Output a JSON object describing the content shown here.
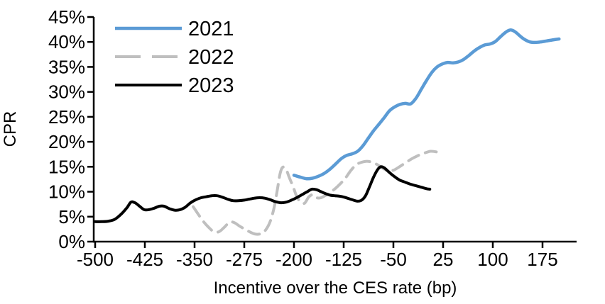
{
  "chart_data": {
    "type": "line",
    "title": "",
    "xlabel": "Incentive over the CES rate (bp)",
    "ylabel": "CPR",
    "xlim": [
      -500,
      228
    ],
    "ylim": [
      0,
      45
    ],
    "x_ticks": [
      -500,
      -425,
      -350,
      -275,
      -200,
      -125,
      -50,
      25,
      100,
      175
    ],
    "y_ticks": [
      0,
      5,
      10,
      15,
      20,
      25,
      30,
      35,
      40,
      45
    ],
    "y_tick_suffix": "%",
    "grid": false,
    "legend_position": "top-left",
    "axis_color": "#000000",
    "series": [
      {
        "name": "2021",
        "color": "#5B9BD5",
        "style": "solid",
        "points": [
          [
            -200,
            13.3
          ],
          [
            -190,
            12.9
          ],
          [
            -181,
            12.6
          ],
          [
            -172,
            12.7
          ],
          [
            -163,
            13.1
          ],
          [
            -154,
            13.7
          ],
          [
            -145,
            14.6
          ],
          [
            -136,
            15.7
          ],
          [
            -128,
            16.7
          ],
          [
            -120,
            17.3
          ],
          [
            -112,
            17.6
          ],
          [
            -104,
            18.1
          ],
          [
            -96,
            19.2
          ],
          [
            -88,
            20.7
          ],
          [
            -80,
            22.2
          ],
          [
            -72,
            23.5
          ],
          [
            -64,
            24.8
          ],
          [
            -56,
            26.2
          ],
          [
            -48,
            27.0
          ],
          [
            -40,
            27.5
          ],
          [
            -32,
            27.7
          ],
          [
            -24,
            27.6
          ],
          [
            -16,
            28.7
          ],
          [
            -8,
            30.5
          ],
          [
            0,
            32.3
          ],
          [
            8,
            33.9
          ],
          [
            16,
            35.0
          ],
          [
            24,
            35.6
          ],
          [
            32,
            35.9
          ],
          [
            40,
            35.8
          ],
          [
            48,
            36.0
          ],
          [
            56,
            36.5
          ],
          [
            64,
            37.3
          ],
          [
            72,
            38.2
          ],
          [
            80,
            38.9
          ],
          [
            88,
            39.4
          ],
          [
            96,
            39.6
          ],
          [
            104,
            40.1
          ],
          [
            112,
            41.1
          ],
          [
            120,
            42.0
          ],
          [
            127,
            42.4
          ],
          [
            134,
            42.0
          ],
          [
            141,
            41.2
          ],
          [
            148,
            40.5
          ],
          [
            156,
            40.0
          ],
          [
            164,
            39.9
          ],
          [
            172,
            40.0
          ],
          [
            181,
            40.2
          ],
          [
            190,
            40.4
          ],
          [
            200,
            40.6
          ]
        ]
      },
      {
        "name": "2022",
        "color": "#BFBFBF",
        "style": "dashed",
        "points": [
          [
            -352,
            7.0
          ],
          [
            -345,
            5.6
          ],
          [
            -337,
            4.1
          ],
          [
            -329,
            2.9
          ],
          [
            -321,
            2.0
          ],
          [
            -313,
            2.0
          ],
          [
            -305,
            2.9
          ],
          [
            -297,
            3.9
          ],
          [
            -290,
            3.8
          ],
          [
            -282,
            3.1
          ],
          [
            -274,
            2.5
          ],
          [
            -266,
            1.9
          ],
          [
            -258,
            1.5
          ],
          [
            -250,
            1.6
          ],
          [
            -243,
            2.3
          ],
          [
            -236,
            4.0
          ],
          [
            -230,
            6.8
          ],
          [
            -225,
            10.5
          ],
          [
            -221,
            13.6
          ],
          [
            -217,
            14.9
          ],
          [
            -212,
            14.5
          ],
          [
            -207,
            12.8
          ],
          [
            -201,
            10.9
          ],
          [
            -196,
            9.1
          ],
          [
            -190,
            7.9
          ],
          [
            -184,
            7.7
          ],
          [
            -178,
            8.9
          ],
          [
            -172,
            9.4
          ],
          [
            -166,
            8.8
          ],
          [
            -159,
            8.8
          ],
          [
            -152,
            9.3
          ],
          [
            -145,
            9.9
          ],
          [
            -138,
            10.6
          ],
          [
            -130,
            11.6
          ],
          [
            -122,
            12.8
          ],
          [
            -114,
            14.3
          ],
          [
            -106,
            15.4
          ],
          [
            -98,
            15.9
          ],
          [
            -90,
            16.1
          ],
          [
            -82,
            15.9
          ],
          [
            -74,
            15.4
          ],
          [
            -66,
            14.7
          ],
          [
            -58,
            14.2
          ],
          [
            -50,
            14.3
          ],
          [
            -42,
            14.9
          ],
          [
            -34,
            15.6
          ],
          [
            -26,
            16.3
          ],
          [
            -18,
            16.9
          ],
          [
            -10,
            17.4
          ],
          [
            -2,
            17.8
          ],
          [
            6,
            18.1
          ],
          [
            14,
            18.0
          ],
          [
            25,
            17.6
          ]
        ]
      },
      {
        "name": "2023",
        "color": "#000000",
        "style": "solid",
        "points": [
          [
            -500,
            4.0
          ],
          [
            -490,
            4.0
          ],
          [
            -480,
            4.1
          ],
          [
            -470,
            4.5
          ],
          [
            -460,
            5.6
          ],
          [
            -452,
            6.8
          ],
          [
            -446,
            7.9
          ],
          [
            -440,
            7.8
          ],
          [
            -433,
            7.1
          ],
          [
            -426,
            6.4
          ],
          [
            -419,
            6.4
          ],
          [
            -411,
            6.7
          ],
          [
            -403,
            7.1
          ],
          [
            -396,
            7.1
          ],
          [
            -388,
            6.6
          ],
          [
            -380,
            6.3
          ],
          [
            -372,
            6.4
          ],
          [
            -364,
            6.9
          ],
          [
            -356,
            7.8
          ],
          [
            -348,
            8.4
          ],
          [
            -340,
            8.8
          ],
          [
            -332,
            9.0
          ],
          [
            -324,
            9.2
          ],
          [
            -316,
            9.2
          ],
          [
            -308,
            8.9
          ],
          [
            -300,
            8.5
          ],
          [
            -292,
            8.2
          ],
          [
            -284,
            8.2
          ],
          [
            -276,
            8.3
          ],
          [
            -268,
            8.5
          ],
          [
            -260,
            8.7
          ],
          [
            -252,
            8.8
          ],
          [
            -244,
            8.7
          ],
          [
            -236,
            8.4
          ],
          [
            -228,
            8.0
          ],
          [
            -220,
            7.8
          ],
          [
            -212,
            7.9
          ],
          [
            -204,
            8.3
          ],
          [
            -196,
            8.8
          ],
          [
            -188,
            9.4
          ],
          [
            -180,
            10.0
          ],
          [
            -173,
            10.5
          ],
          [
            -166,
            10.4
          ],
          [
            -159,
            10.0
          ],
          [
            -152,
            9.6
          ],
          [
            -145,
            9.3
          ],
          [
            -138,
            9.2
          ],
          [
            -131,
            9.1
          ],
          [
            -124,
            8.9
          ],
          [
            -117,
            8.6
          ],
          [
            -110,
            8.3
          ],
          [
            -104,
            8.1
          ],
          [
            -98,
            8.3
          ],
          [
            -92,
            9.2
          ],
          [
            -86,
            11.0
          ],
          [
            -80,
            12.9
          ],
          [
            -74,
            14.4
          ],
          [
            -69,
            15.0
          ],
          [
            -64,
            14.8
          ],
          [
            -58,
            14.1
          ],
          [
            -52,
            13.4
          ],
          [
            -46,
            12.8
          ],
          [
            -40,
            12.3
          ],
          [
            -32,
            11.9
          ],
          [
            -24,
            11.5
          ],
          [
            -16,
            11.2
          ],
          [
            -8,
            10.9
          ],
          [
            0,
            10.6
          ],
          [
            5,
            10.5
          ]
        ]
      }
    ]
  }
}
